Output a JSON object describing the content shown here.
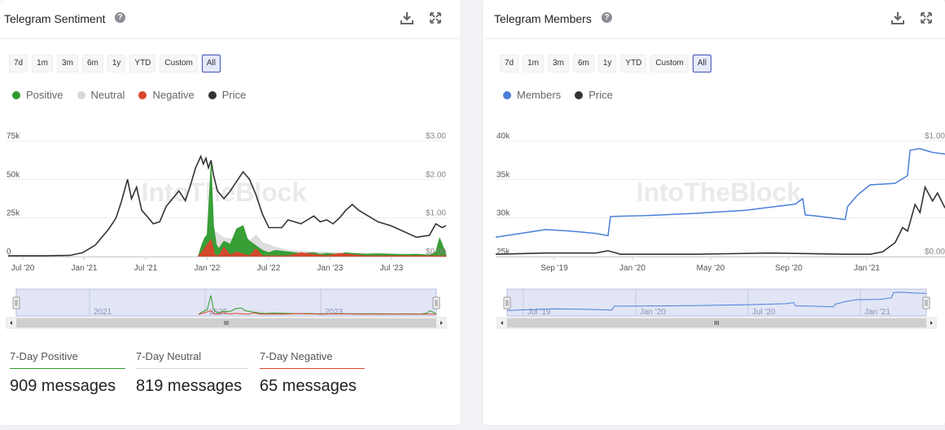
{
  "sentiment_card": {
    "title": "Telegram Sentiment",
    "help_icon": "?",
    "ranges": [
      "7d",
      "1m",
      "3m",
      "6m",
      "1y",
      "YTD",
      "Custom",
      "All"
    ],
    "active_range": "All",
    "legend": [
      {
        "label": "Positive",
        "color": "#2e9a2c"
      },
      {
        "label": "Neutral",
        "color": "#d8d8d8"
      },
      {
        "label": "Negative",
        "color": "#d9452b"
      },
      {
        "label": "Price",
        "color": "#333333"
      }
    ],
    "watermark": "IntoTheBlock",
    "stats": [
      {
        "label": "7-Day Positive",
        "value": "909 messages",
        "color": "#2e9a2c"
      },
      {
        "label": "7-Day Neutral",
        "value": "819 messages",
        "color": "#d8d8d8"
      },
      {
        "label": "7-Day Negative",
        "value": "65 messages",
        "color": "#d9452b"
      }
    ]
  },
  "members_card": {
    "title": "Telegram Members",
    "help_icon": "?",
    "ranges": [
      "7d",
      "1m",
      "3m",
      "6m",
      "1y",
      "YTD",
      "Custom",
      "All"
    ],
    "active_range": "All",
    "legend": [
      {
        "label": "Members",
        "color": "#4a7fd9"
      },
      {
        "label": "Price",
        "color": "#333333"
      }
    ],
    "watermark": "IntoTheBlock"
  },
  "chart_data": [
    {
      "type": "area",
      "title": "Telegram Sentiment",
      "x_ticks": [
        "Jul '20",
        "Jan '21",
        "Jul '21",
        "Jan '22",
        "Jul '22",
        "Jan '23",
        "Jul '23"
      ],
      "y_left_ticks": [
        "0",
        "25k",
        "50k",
        "75k"
      ],
      "y_right_ticks": [
        "$0.00",
        "$1.00",
        "$2.00",
        "$3.00"
      ],
      "y_left_lim": [
        0,
        75000
      ],
      "y_right_lim": [
        0,
        3
      ],
      "x_lim": [
        2020.42,
        2023.83
      ],
      "navigator_labels": [
        "2021",
        "2022",
        "2023"
      ],
      "series": [
        {
          "name": "Price",
          "axis": "right",
          "color": "#333333",
          "x": [
            2020.42,
            2020.7,
            2020.9,
            2021.0,
            2021.1,
            2021.15,
            2021.2,
            2021.26,
            2021.3,
            2021.35,
            2021.38,
            2021.42,
            2021.46,
            2021.5,
            2021.55,
            2021.6,
            2021.65,
            2021.7,
            2021.75,
            2021.8,
            2021.84,
            2021.88,
            2021.92,
            2021.94,
            2021.96,
            2021.98,
            2022.0,
            2022.02,
            2022.05,
            2022.1,
            2022.15,
            2022.2,
            2022.25,
            2022.3,
            2022.35,
            2022.4,
            2022.45,
            2022.5,
            2022.55,
            2022.6,
            2022.7,
            2022.75,
            2022.8,
            2022.85,
            2022.9,
            2022.95,
            2023.0,
            2023.05,
            2023.1,
            2023.15,
            2023.2,
            2023.3,
            2023.4,
            2023.5,
            2023.6,
            2023.7,
            2023.75,
            2023.8,
            2023.83
          ],
          "values": [
            0.02,
            0.02,
            0.03,
            0.1,
            0.3,
            0.5,
            0.7,
            1.0,
            1.4,
            2.0,
            1.5,
            1.8,
            1.2,
            1.05,
            0.85,
            0.9,
            1.3,
            1.5,
            1.7,
            1.45,
            1.85,
            2.3,
            2.6,
            2.4,
            2.55,
            2.3,
            2.5,
            2.1,
            1.7,
            1.5,
            1.7,
            1.95,
            2.2,
            2.0,
            1.6,
            1.1,
            0.75,
            0.75,
            0.75,
            0.95,
            0.85,
            0.95,
            1.05,
            0.9,
            0.95,
            0.85,
            1.0,
            1.2,
            1.35,
            1.2,
            1.1,
            0.9,
            0.8,
            0.65,
            0.5,
            0.55,
            0.85,
            0.75,
            0.8
          ]
        },
        {
          "name": "Neutral",
          "axis": "left",
          "color": "#d8d8d8",
          "x": [
            2021.9,
            2021.95,
            2022.0,
            2022.05,
            2022.1,
            2022.2,
            2022.3,
            2022.35,
            2022.4,
            2022.5,
            2022.6,
            2022.8,
            2023.0,
            2023.3,
            2023.6,
            2023.75,
            2023.8,
            2023.83
          ],
          "values": [
            0,
            12000,
            18000,
            15000,
            12000,
            11000,
            10000,
            14000,
            9000,
            6000,
            4000,
            3000,
            2500,
            2000,
            1500,
            1000,
            6000,
            3000
          ]
        },
        {
          "name": "Positive",
          "axis": "left",
          "color": "#2e9a2c",
          "x": [
            2021.9,
            2021.93,
            2021.95,
            2021.97,
            2022.0,
            2022.02,
            2022.04,
            2022.06,
            2022.1,
            2022.15,
            2022.2,
            2022.25,
            2022.28,
            2022.3,
            2022.35,
            2022.4,
            2022.45,
            2022.5,
            2022.6,
            2022.7,
            2022.8,
            2022.85,
            2022.9,
            2023.0,
            2023.05,
            2023.1,
            2023.2,
            2023.3,
            2023.4,
            2023.5,
            2023.6,
            2023.7,
            2023.75,
            2023.78,
            2023.8,
            2023.83
          ],
          "values": [
            0,
            8000,
            12000,
            14000,
            60000,
            20000,
            8000,
            5000,
            10000,
            8000,
            18000,
            20000,
            12000,
            10000,
            7000,
            4000,
            2500,
            4000,
            3000,
            2000,
            2500,
            1500,
            2000,
            1500,
            2500,
            2000,
            1500,
            1800,
            1500,
            1200,
            1500,
            1000,
            3000,
            12000,
            8000,
            1000
          ]
        },
        {
          "name": "Negative",
          "axis": "left",
          "color": "#d9452b",
          "x": [
            2021.9,
            2022.0,
            2022.03,
            2022.06,
            2022.1,
            2022.15,
            2022.2,
            2022.3,
            2022.35,
            2022.4,
            2022.6,
            2022.7,
            2022.9,
            2023.0,
            2023.2,
            2023.5,
            2023.83
          ],
          "values": [
            0,
            11000,
            1000,
            500,
            6000,
            1000,
            3000,
            500,
            5000,
            500,
            500,
            2500,
            500,
            2000,
            500,
            500,
            500
          ]
        }
      ]
    },
    {
      "type": "line",
      "title": "Telegram Members",
      "x_ticks": [
        "Sep '19",
        "Jan '20",
        "May '20",
        "Sep '20",
        "Jan '21"
      ],
      "y_left_ticks": [
        "25k",
        "30k",
        "35k",
        "40k"
      ],
      "y_right_ticks": [
        "$0.00",
        "$1.00"
      ],
      "y_left_lim": [
        25000,
        40000
      ],
      "y_right_lim": [
        0,
        1
      ],
      "x_lim": [
        2019.5,
        2021.3
      ],
      "navigator_labels": [
        "Jul '19",
        "Jan '20",
        "Jul '20",
        "Jan '21"
      ],
      "series": [
        {
          "name": "Members",
          "axis": "left",
          "color": "#4a7fd9",
          "x": [
            2019.5,
            2019.6,
            2019.7,
            2019.8,
            2019.9,
            2019.95,
            2019.96,
            2020.1,
            2020.3,
            2020.5,
            2020.7,
            2020.73,
            2020.74,
            2020.8,
            2020.9,
            2020.91,
            2020.95,
            2021.0,
            2021.1,
            2021.15,
            2021.16,
            2021.2,
            2021.25,
            2021.3
          ],
          "values": [
            27500,
            28000,
            28500,
            28300,
            28000,
            27700,
            30200,
            30300,
            30600,
            31000,
            31800,
            32500,
            30400,
            30200,
            29800,
            31500,
            33000,
            34300,
            34500,
            35500,
            38800,
            39000,
            38500,
            38300
          ]
        },
        {
          "name": "Price",
          "axis": "right",
          "color": "#333333",
          "x": [
            2019.5,
            2019.7,
            2019.9,
            2019.95,
            2020.0,
            2020.3,
            2020.6,
            2020.9,
            2021.0,
            2021.05,
            2021.1,
            2021.13,
            2021.15,
            2021.18,
            2021.2,
            2021.22,
            2021.25,
            2021.27,
            2021.3
          ],
          "values": [
            0.02,
            0.03,
            0.03,
            0.05,
            0.02,
            0.02,
            0.03,
            0.02,
            0.02,
            0.04,
            0.12,
            0.25,
            0.22,
            0.45,
            0.38,
            0.6,
            0.48,
            0.55,
            0.42
          ]
        }
      ]
    }
  ]
}
